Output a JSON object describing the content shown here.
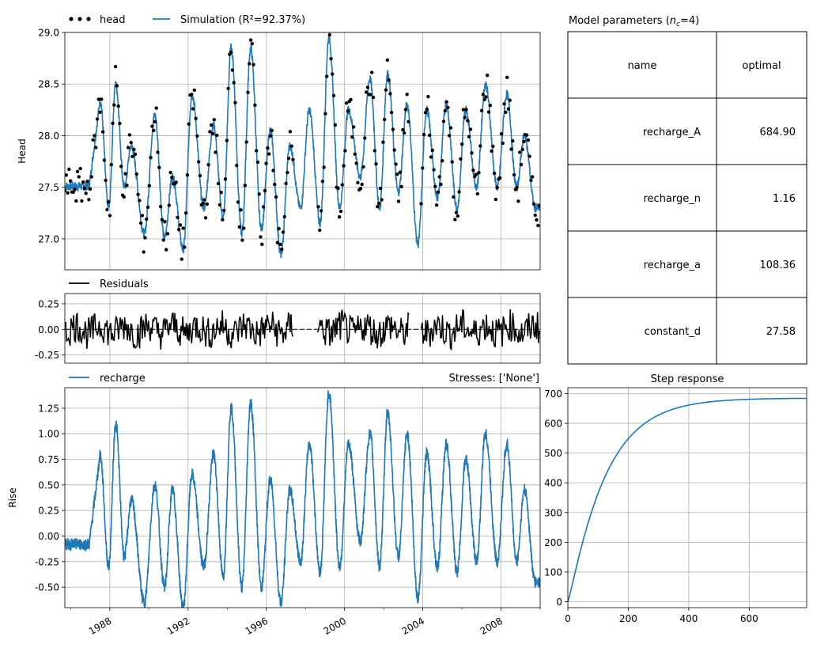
{
  "colors": {
    "sim": "#1f77b4",
    "obs": "#000000",
    "resid": "#000000",
    "grid": "#b0b0b0",
    "axis": "#000000"
  },
  "chart_data": [
    {
      "panel": "head",
      "type": "line",
      "ylabel": "Head",
      "ylim": [
        26.7,
        29.0
      ],
      "yticks": [
        "27.0",
        "27.5",
        "28.0",
        "28.5",
        "29.0"
      ],
      "ytick_values": [
        27.0,
        27.5,
        28.0,
        28.5,
        29.0
      ],
      "xlim": [
        1985.7,
        2010.0
      ],
      "grid": true,
      "legend_placement": "top-left outside",
      "series": [
        {
          "name": "head",
          "style": "dots"
        },
        {
          "name": "Simulation",
          "legend_text": "Simulation (R²=92.37%)",
          "style": "line"
        }
      ],
      "seasonal_peak_year": [
        1987.5,
        1988.3,
        1989.1,
        1990.3,
        1991.2,
        1992.2,
        1993.3,
        1994.2,
        1995.2,
        1996.2,
        1997.2,
        1998.2,
        1999.2,
        2000.2,
        2001.3,
        2002.2,
        2003.2,
        2004.2,
        2005.2,
        2006.2,
        2007.2,
        2008.3,
        2009.2
      ],
      "seasonal_peak": [
        28.35,
        28.5,
        27.9,
        28.2,
        27.6,
        28.4,
        28.1,
        28.85,
        28.85,
        28.05,
        27.9,
        28.25,
        28.95,
        28.25,
        28.55,
        28.6,
        28.3,
        28.25,
        28.3,
        28.25,
        28.5,
        28.4,
        28.0
      ],
      "seasonal_trough": [
        27.3,
        27.5,
        27.05,
        27.0,
        26.9,
        27.3,
        27.2,
        27.05,
        27.1,
        26.85,
        27.3,
        27.15,
        27.3,
        27.6,
        27.3,
        27.45,
        26.95,
        27.4,
        27.3,
        27.5,
        27.5,
        27.5,
        27.3
      ]
    },
    {
      "panel": "residuals",
      "type": "line",
      "ylim": [
        -0.33,
        0.35
      ],
      "yticks": [
        "-0.25",
        "0.00",
        "0.25"
      ],
      "ytick_values": [
        -0.25,
        0.0,
        0.25
      ],
      "grid": true,
      "series": [
        {
          "name": "Residuals"
        }
      ],
      "gaps_years": [
        [
          1997.4,
          1998.6
        ],
        [
          2003.3,
          2003.9
        ]
      ]
    },
    {
      "panel": "recharge",
      "type": "line",
      "ylabel": "Rise",
      "ylim": [
        -0.7,
        1.45
      ],
      "yticks": [
        "-0.50",
        "-0.25",
        "0.00",
        "0.25",
        "0.50",
        "0.75",
        "1.00",
        "1.25"
      ],
      "ytick_values": [
        -0.5,
        -0.25,
        0.0,
        0.25,
        0.5,
        0.75,
        1.0,
        1.25
      ],
      "xticks": [
        "1988",
        "1992",
        "1996",
        "2000",
        "2004",
        "2008"
      ],
      "xtick_values": [
        1988,
        1992,
        1996,
        2000,
        2004,
        2008
      ],
      "grid": true,
      "series": [
        {
          "name": "recharge"
        }
      ],
      "annotation": "Stresses: ['None']",
      "seasonal_peak": [
        0.8,
        1.1,
        0.35,
        0.5,
        0.45,
        0.6,
        0.8,
        1.25,
        1.3,
        0.55,
        0.45,
        0.9,
        1.4,
        0.9,
        1.0,
        1.2,
        1.0,
        0.8,
        0.9,
        0.75,
        1.0,
        0.9,
        0.45
      ],
      "seasonal_trough": [
        -0.3,
        -0.2,
        -0.65,
        -0.5,
        -0.7,
        -0.3,
        -0.4,
        -0.5,
        -0.5,
        -0.65,
        -0.25,
        -0.35,
        -0.3,
        -0.05,
        -0.3,
        -0.2,
        -0.6,
        -0.3,
        -0.35,
        -0.25,
        -0.25,
        -0.25,
        -0.45
      ]
    },
    {
      "panel": "step_response",
      "type": "line",
      "title": "Step response",
      "xlim": [
        0,
        790
      ],
      "ylim": [
        -20,
        720
      ],
      "xticks": [
        "0",
        "200",
        "400",
        "600"
      ],
      "xtick_values": [
        0,
        200,
        400,
        600
      ],
      "yticks": [
        "0",
        "100",
        "200",
        "300",
        "400",
        "500",
        "600",
        "700"
      ],
      "ytick_values": [
        0,
        100,
        200,
        300,
        400,
        500,
        600,
        700
      ],
      "grid": true,
      "series": [
        {
          "name": "step",
          "A": 684.9,
          "n": 1.16,
          "a": 108.36
        }
      ]
    },
    {
      "panel": "parameters",
      "type": "table",
      "title": "Model parameters (n_c=4)",
      "columns": [
        "name",
        "optimal"
      ],
      "rows": [
        [
          "recharge_A",
          "684.90"
        ],
        [
          "recharge_n",
          "1.16"
        ],
        [
          "recharge_a",
          "108.36"
        ],
        [
          "constant_d",
          "27.58"
        ]
      ]
    }
  ]
}
